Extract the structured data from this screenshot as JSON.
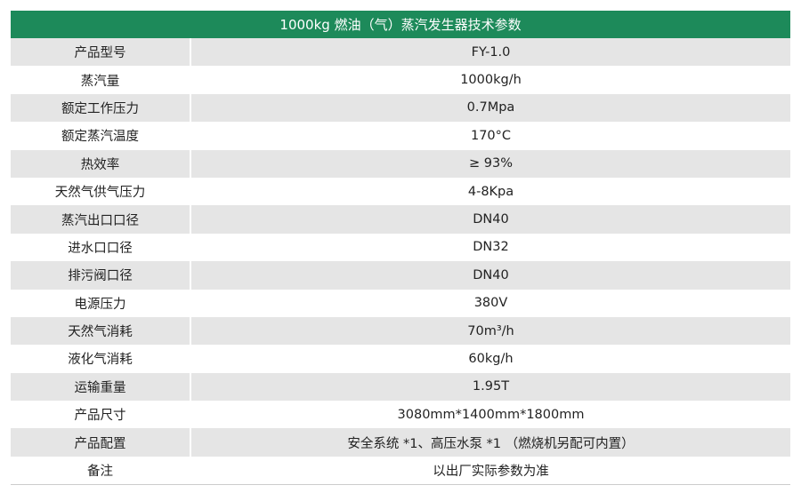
{
  "header": {
    "title": "1000kg 燃油（气）蒸汽发生器技术参数"
  },
  "table": {
    "rows": [
      [
        "产品型号",
        "FY-1.0"
      ],
      [
        "蒸汽量",
        "1000kg/h"
      ],
      [
        "额定工作压力",
        "0.7Mpa"
      ],
      [
        "额定蒸汽温度",
        "170°C"
      ],
      [
        "热效率",
        "≥ 93%"
      ],
      [
        "天然气供气压力",
        "4-8Kpa"
      ],
      [
        "蒸汽出口口径",
        "DN40"
      ],
      [
        "进水口口径",
        "DN32"
      ],
      [
        "排污阀口径",
        "DN40"
      ],
      [
        "电源压力",
        "380V"
      ],
      [
        "天然气消耗",
        "70m³/h"
      ],
      [
        "液化气消耗",
        "60kg/h"
      ],
      [
        "运输重量",
        "1.95T"
      ],
      [
        "产品尺寸",
        "3080mm*1400mm*1800mm"
      ],
      [
        "产品配置",
        "安全系统 *1、高压水泵 *1 （燃烧机另配可内置）"
      ],
      [
        "备注",
        "以出厂实际参数为准"
      ]
    ]
  }
}
